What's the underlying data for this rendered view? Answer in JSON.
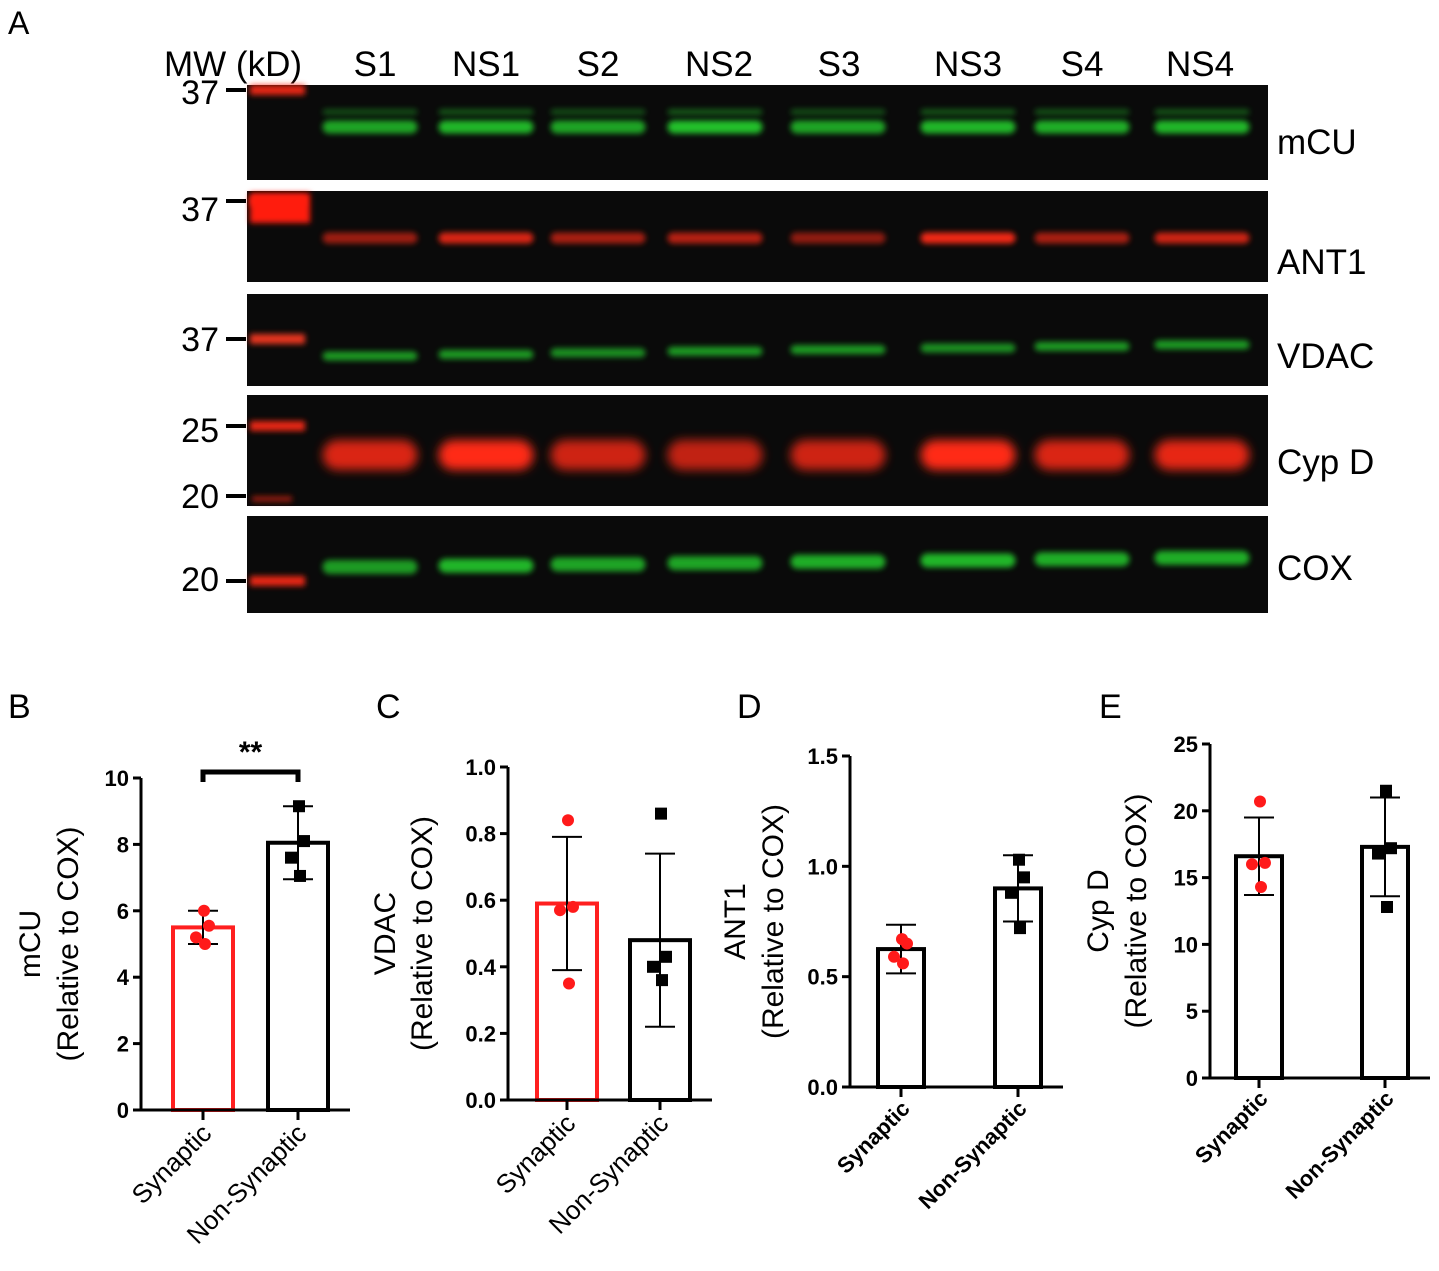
{
  "panel_a": {
    "panel_label": "A",
    "mw_header": "MW (kD)",
    "lanes": [
      "S1",
      "NS1",
      "S2",
      "NS2",
      "S3",
      "NS3",
      "S4",
      "NS4"
    ],
    "blots": [
      {
        "name": "mCU",
        "channel": "green",
        "mw_marks": [
          "37"
        ]
      },
      {
        "name": "ANT1",
        "channel": "red",
        "mw_marks": [
          "37"
        ]
      },
      {
        "name": "VDAC",
        "channel": "green",
        "mw_marks": [
          "37"
        ]
      },
      {
        "name": "Cyp D",
        "channel": "red",
        "mw_marks": [
          "25",
          "20"
        ]
      },
      {
        "name": "COX",
        "channel": "green",
        "mw_marks": [
          "20"
        ]
      }
    ],
    "band_intensity": {
      "mCU": [
        0.85,
        0.95,
        0.85,
        1.0,
        0.85,
        0.95,
        0.9,
        0.95
      ],
      "ANT1": [
        0.6,
        0.85,
        0.65,
        0.7,
        0.55,
        0.95,
        0.65,
        0.8
      ],
      "VDAC": [
        0.8,
        0.8,
        0.75,
        0.8,
        0.8,
        0.75,
        0.8,
        0.8
      ],
      "CypD": [
        0.85,
        1.0,
        0.8,
        0.75,
        0.8,
        1.0,
        0.85,
        0.9
      ],
      "COX": [
        0.8,
        0.95,
        0.85,
        0.85,
        0.9,
        0.95,
        0.9,
        0.9
      ]
    },
    "colors": {
      "green": "#22c02a",
      "red": "#ff2a14",
      "blot_bg": "#0a0a0a"
    }
  },
  "chart_data": [
    {
      "panel": "B",
      "type": "bar",
      "ylabel_line1": "mCU",
      "ylabel_line2": "(Relative to COX)",
      "ylim": [
        0,
        10
      ],
      "yticks": [
        "0",
        "2",
        "4",
        "6",
        "8",
        "10"
      ],
      "categories": [
        "Synaptic",
        "Non-Synaptic"
      ],
      "tick_font": "normal",
      "values": [
        5.5,
        8.05
      ],
      "sd": [
        0.5,
        1.1
      ],
      "points": [
        [
          6.0,
          5.55,
          5.2,
          5.0
        ],
        [
          9.15,
          8.1,
          7.6,
          7.05
        ]
      ],
      "bar_colors": [
        "#ff1f1f",
        "#000000"
      ],
      "significance": "**"
    },
    {
      "panel": "C",
      "type": "bar",
      "ylabel_line1": "VDAC",
      "ylabel_line2": "(Relative to COX)",
      "ylim": [
        0,
        1.0
      ],
      "yticks": [
        "0.0",
        "0.2",
        "0.4",
        "0.6",
        "0.8",
        "1.0"
      ],
      "categories": [
        "Synaptic",
        "Non-Synaptic"
      ],
      "tick_font": "normal",
      "values": [
        0.59,
        0.48
      ],
      "sd": [
        0.2,
        0.26
      ],
      "points": [
        [
          0.84,
          0.58,
          0.57,
          0.35
        ],
        [
          0.86,
          0.43,
          0.4,
          0.36
        ]
      ],
      "bar_colors": [
        "#ff1f1f",
        "#000000"
      ]
    },
    {
      "panel": "D",
      "type": "bar",
      "ylabel_line1": "ANT1",
      "ylabel_line2": "(Relative to COX)",
      "ylim": [
        0,
        1.5
      ],
      "yticks": [
        "0.0",
        "0.5",
        "1.0",
        "1.5"
      ],
      "categories": [
        "Synaptic",
        "Non-Synaptic"
      ],
      "tick_font": "bold",
      "values": [
        0.625,
        0.9
      ],
      "sd": [
        0.11,
        0.15
      ],
      "points": [
        [
          0.67,
          0.65,
          0.59,
          0.56
        ],
        [
          1.03,
          0.95,
          0.88,
          0.72
        ]
      ],
      "bar_colors": [
        "#000000",
        "#000000"
      ]
    },
    {
      "panel": "E",
      "type": "bar",
      "ylabel_line1": "Cyp D",
      "ylabel_line2": "(Relative to COX)",
      "ylim": [
        0,
        25
      ],
      "yticks": [
        "0",
        "5",
        "10",
        "15",
        "20",
        "25"
      ],
      "categories": [
        "Synaptic",
        "Non-Synaptic"
      ],
      "tick_font": "bold",
      "values": [
        16.6,
        17.3
      ],
      "sd": [
        2.9,
        3.7
      ],
      "points": [
        [
          20.7,
          16.1,
          16.0,
          14.3
        ],
        [
          21.5,
          17.2,
          16.8,
          12.8
        ]
      ],
      "bar_colors": [
        "#000000",
        "#000000"
      ]
    }
  ]
}
